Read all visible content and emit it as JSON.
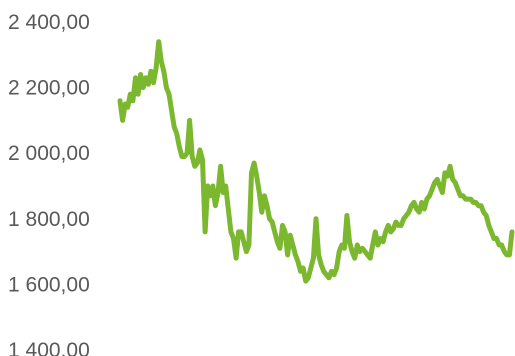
{
  "chart_data": {
    "type": "line",
    "title": "",
    "xlabel": "",
    "ylabel": "",
    "ylim": [
      1400,
      2400
    ],
    "y_ticks": [
      {
        "value": 2400,
        "label": "2 400,00"
      },
      {
        "value": 2200,
        "label": "2 200,00"
      },
      {
        "value": 2000,
        "label": "2 000,00"
      },
      {
        "value": 1800,
        "label": "1 800,00"
      },
      {
        "value": 1600,
        "label": "1 600,00"
      },
      {
        "value": 1400,
        "label": "1 400,00"
      }
    ],
    "grid": false,
    "legend": "none",
    "series": [
      {
        "color": "#7cb82f",
        "values": [
          2160,
          2100,
          2150,
          2140,
          2180,
          2160,
          2230,
          2180,
          2240,
          2200,
          2230,
          2210,
          2250,
          2215,
          2260,
          2340,
          2280,
          2250,
          2200,
          2180,
          2130,
          2080,
          2060,
          2020,
          1990,
          1990,
          2000,
          2100,
          1990,
          1960,
          1970,
          2010,
          1980,
          1760,
          1900,
          1870,
          1900,
          1840,
          1880,
          1960,
          1880,
          1900,
          1830,
          1760,
          1740,
          1680,
          1760,
          1760,
          1730,
          1700,
          1720,
          1940,
          1970,
          1930,
          1880,
          1820,
          1870,
          1840,
          1800,
          1790,
          1760,
          1730,
          1710,
          1780,
          1760,
          1690,
          1750,
          1720,
          1690,
          1670,
          1640,
          1650,
          1610,
          1620,
          1650,
          1680,
          1800,
          1690,
          1660,
          1640,
          1630,
          1620,
          1640,
          1630,
          1650,
          1700,
          1720,
          1710,
          1810,
          1730,
          1700,
          1680,
          1720,
          1700,
          1710,
          1700,
          1690,
          1680,
          1720,
          1760,
          1720,
          1740,
          1730,
          1760,
          1780,
          1760,
          1770,
          1790,
          1780,
          1780,
          1800,
          1810,
          1820,
          1840,
          1850,
          1830,
          1820,
          1850,
          1830,
          1860,
          1870,
          1890,
          1910,
          1920,
          1900,
          1880,
          1940,
          1930,
          1960,
          1920,
          1910,
          1890,
          1870,
          1870,
          1860,
          1860,
          1860,
          1850,
          1850,
          1840,
          1840,
          1820,
          1810,
          1780,
          1760,
          1740,
          1740,
          1720,
          1720,
          1700,
          1690,
          1690,
          1760
        ]
      }
    ]
  }
}
